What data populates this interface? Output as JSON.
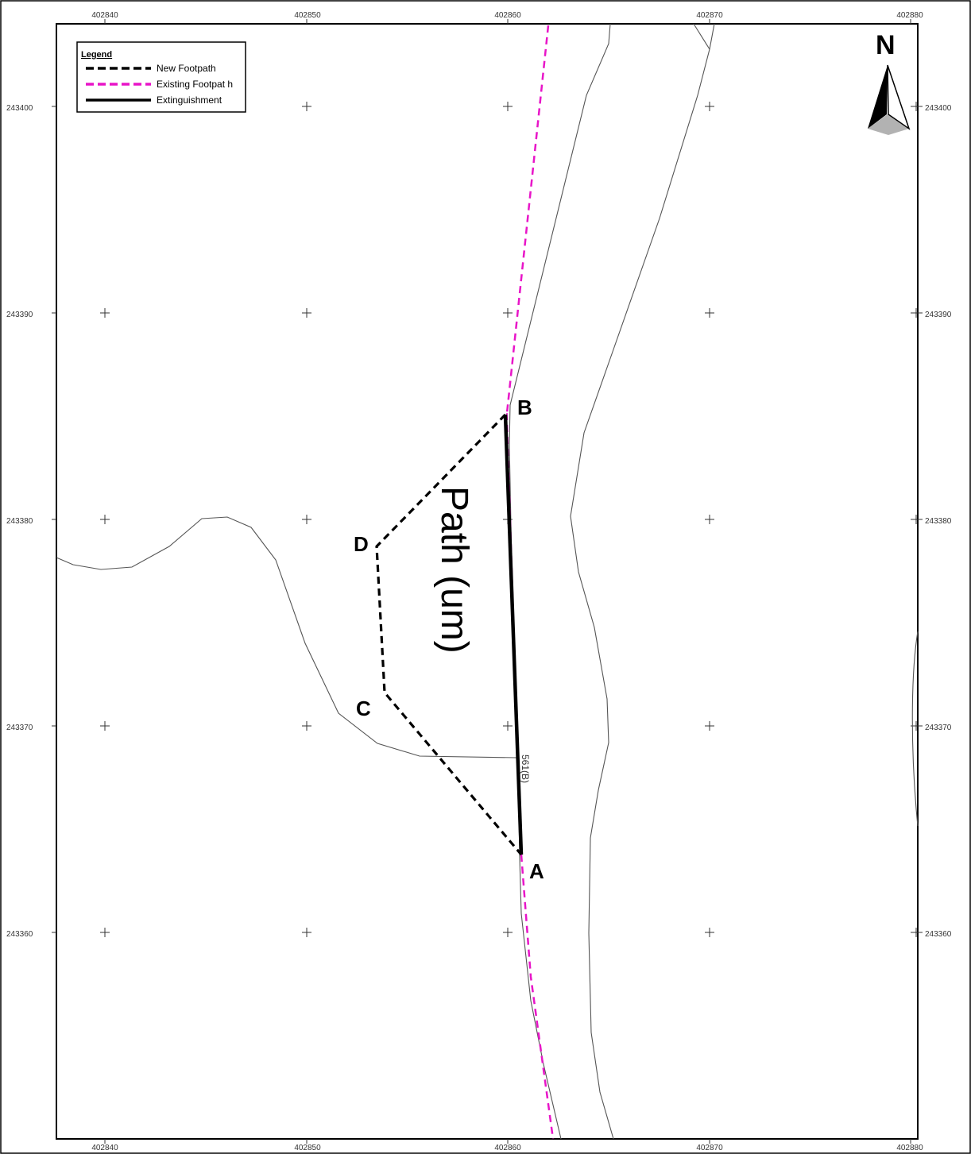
{
  "map": {
    "x_ticks": [
      "402840",
      "402850",
      "402860",
      "402870",
      "402880"
    ],
    "y_ticks": [
      "243400",
      "243390",
      "243380",
      "243370",
      "243360"
    ],
    "legend": {
      "title": "Legend",
      "items": [
        {
          "label": "New Footpath",
          "style": "dashed",
          "color": "#000000"
        },
        {
          "label": "Existing Footpat h",
          "style": "dashed",
          "color": "#e815c8"
        },
        {
          "label": "Extinguishment",
          "style": "solid",
          "color": "#000000"
        }
      ]
    },
    "north_label": "N",
    "points": {
      "a": "A",
      "b": "B",
      "c": "C",
      "d": "D"
    },
    "path_label": "Path (um)",
    "path_ref": "561(B)",
    "colors": {
      "existing_footpath": "#e815c8",
      "new_footpath": "#000000",
      "extinguishment": "#000000",
      "feature_lines": "#555555"
    }
  }
}
